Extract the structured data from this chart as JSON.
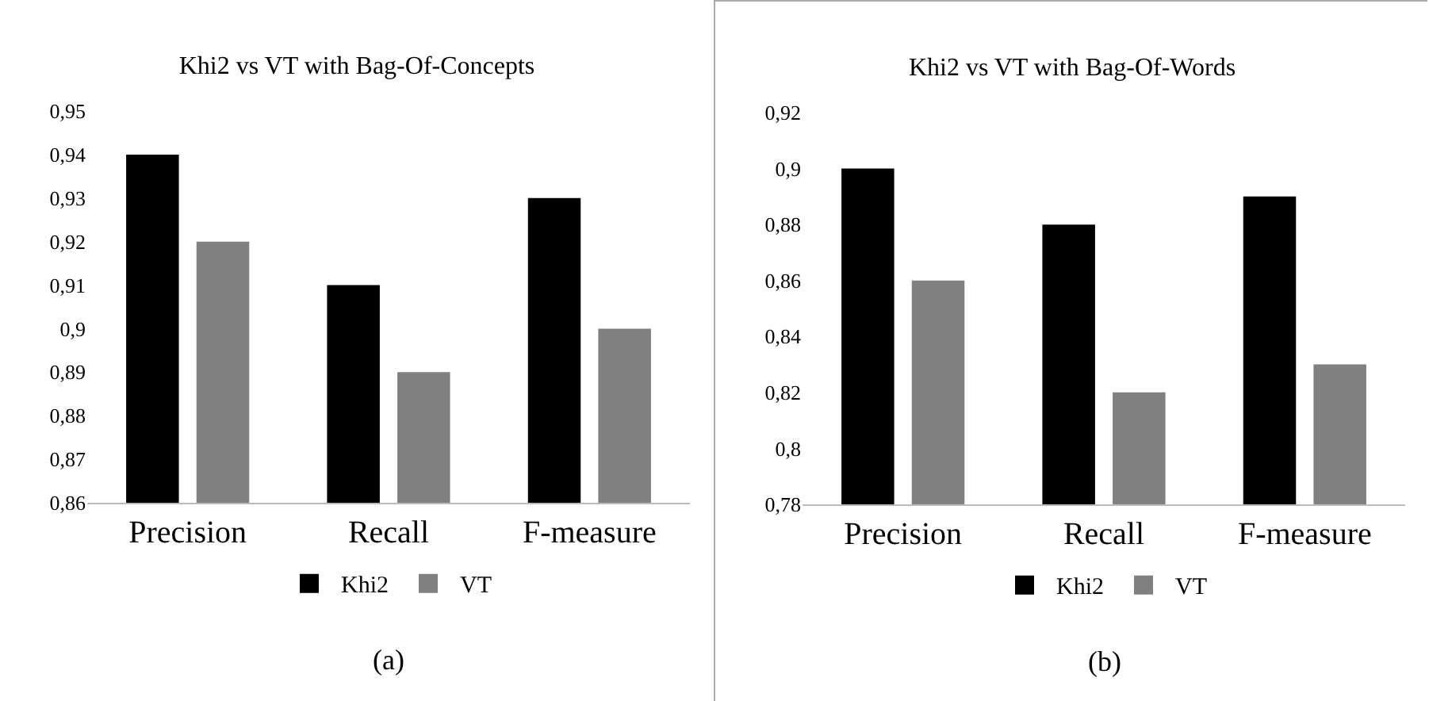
{
  "chart_data": [
    {
      "type": "bar",
      "title": "Khi2 vs VT with Bag-Of-Concepts",
      "categories": [
        "Precision",
        "Recall",
        "F-measure"
      ],
      "series": [
        {
          "name": "Khi2",
          "color": "#000000",
          "values": [
            0.94,
            0.91,
            0.93
          ]
        },
        {
          "name": "VT",
          "color": "#808080",
          "values": [
            0.92,
            0.89,
            0.9
          ]
        }
      ],
      "ylim": [
        0.86,
        0.95
      ],
      "yticks": [
        {
          "value": 0.86,
          "label": "0,86"
        },
        {
          "value": 0.87,
          "label": "0,87"
        },
        {
          "value": 0.88,
          "label": "0,88"
        },
        {
          "value": 0.89,
          "label": "0,89"
        },
        {
          "value": 0.9,
          "label": "0,9"
        },
        {
          "value": 0.91,
          "label": "0,91"
        },
        {
          "value": 0.92,
          "label": "0,92"
        },
        {
          "value": 0.93,
          "label": "0,93"
        },
        {
          "value": 0.94,
          "label": "0,94"
        },
        {
          "value": 0.95,
          "label": "0,95"
        }
      ],
      "grid": false,
      "legend": "bottom",
      "annotations": [
        "(a)"
      ]
    },
    {
      "type": "bar",
      "title": "Khi2 vs VT with Bag-Of-Words",
      "categories": [
        "Precision",
        "Recall",
        "F-measure"
      ],
      "series": [
        {
          "name": "Khi2",
          "color": "#000000",
          "values": [
            0.9,
            0.88,
            0.89
          ]
        },
        {
          "name": "VT",
          "color": "#808080",
          "values": [
            0.86,
            0.82,
            0.83
          ]
        }
      ],
      "ylim": [
        0.78,
        0.92
      ],
      "yticks": [
        {
          "value": 0.78,
          "label": "0,78"
        },
        {
          "value": 0.8,
          "label": "0,8"
        },
        {
          "value": 0.82,
          "label": "0,82"
        },
        {
          "value": 0.84,
          "label": "0,84"
        },
        {
          "value": 0.86,
          "label": "0,86"
        },
        {
          "value": 0.88,
          "label": "0,88"
        },
        {
          "value": 0.9,
          "label": "0,9"
        },
        {
          "value": 0.92,
          "label": "0,92"
        }
      ],
      "grid": false,
      "legend": "bottom",
      "annotations": [
        "(b)"
      ]
    }
  ]
}
